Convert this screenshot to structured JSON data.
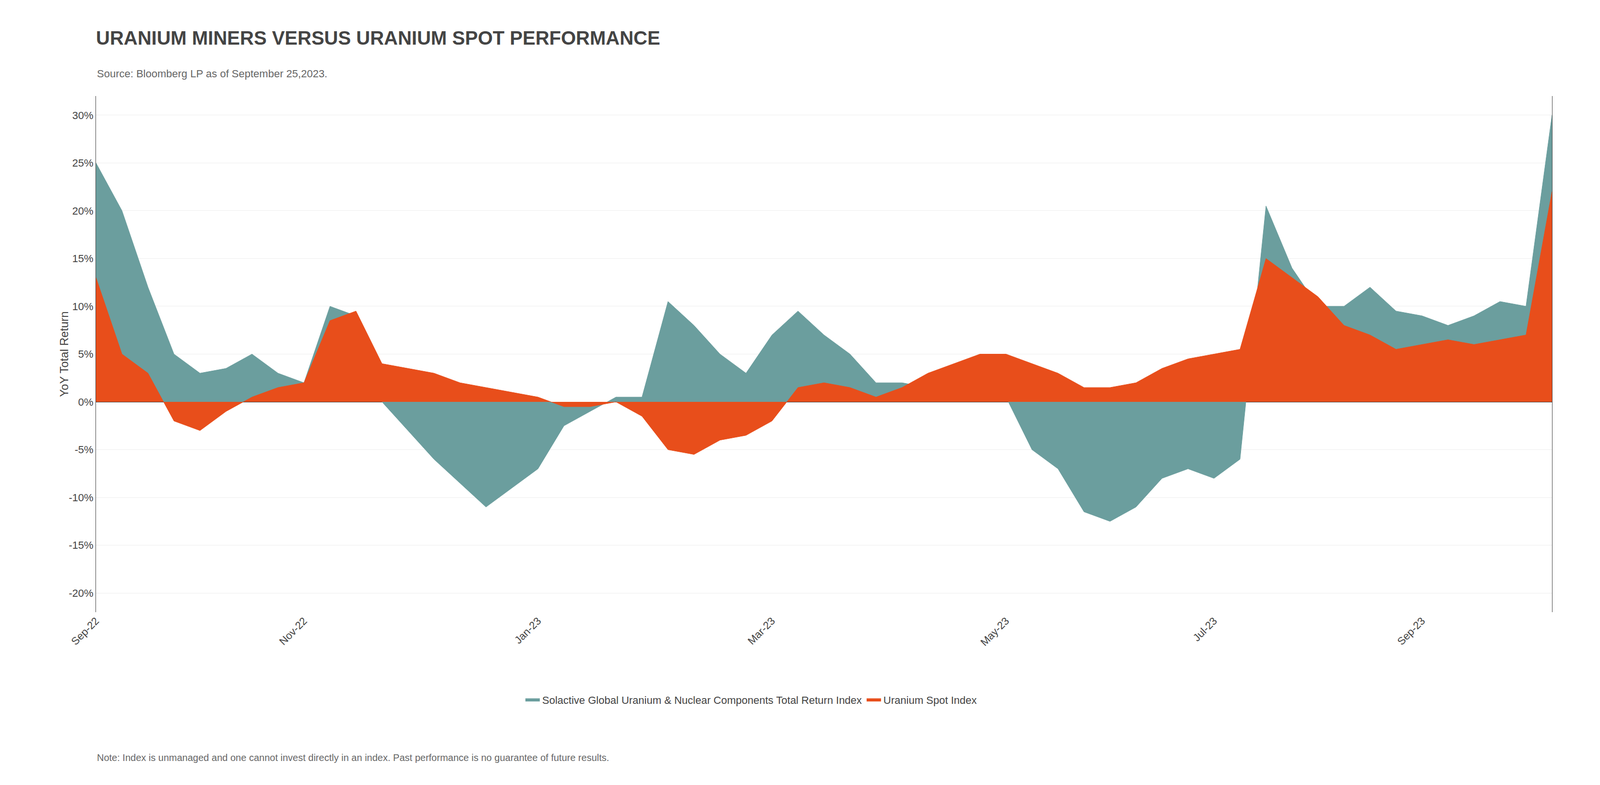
{
  "chart_data": {
    "type": "area",
    "title": "URANIUM MINERS VERSUS URANIUM SPOT PERFORMANCE",
    "subtitle": "Source: Bloomberg LP as of September 25,2023.",
    "annotations": [
      "Note: Index is unmanaged and one cannot invest directly in an index. Past performance is no guarantee of future results."
    ],
    "y_label": "YoY Total Return",
    "categories": [
      "Sep-22",
      null,
      null,
      null,
      null,
      null,
      null,
      null,
      "Nov-22",
      null,
      null,
      null,
      null,
      null,
      null,
      null,
      null,
      "Jan-23",
      null,
      null,
      null,
      null,
      null,
      null,
      null,
      null,
      "Mar-23",
      null,
      null,
      null,
      null,
      null,
      null,
      null,
      null,
      "May-23",
      null,
      null,
      null,
      null,
      null,
      null,
      null,
      "Jul-23",
      null,
      null,
      null,
      null,
      null,
      null,
      null,
      "Sep-23",
      null,
      null,
      null,
      null,
      null
    ],
    "series": [
      {
        "name": "Solactive Global Uranium & Nuclear Components Total Return Index",
        "color": "#6b9e9e",
        "values": [
          25.0,
          20.0,
          12.0,
          5.0,
          3.0,
          3.5,
          5.0,
          3.0,
          2.0,
          10.0,
          9.0,
          0.0,
          -3.0,
          -6.0,
          -8.5,
          -11.0,
          -9.0,
          -7.0,
          -2.5,
          -1.0,
          0.5,
          0.5,
          10.5,
          8.0,
          5.0,
          3.0,
          7.0,
          9.5,
          7.0,
          5.0,
          2.0,
          2.0,
          1.5,
          1.0,
          1.0,
          0.5,
          -5.0,
          -7.0,
          -11.5,
          -12.5,
          -11.0,
          -8.0,
          -7.0,
          -8.0,
          -6.0,
          20.5,
          14.0,
          10.0,
          10.0,
          12.0,
          9.5,
          9.0,
          8.0,
          9.0,
          10.5,
          10.0,
          30.0
        ]
      },
      {
        "name": "Uranium Spot Index",
        "color": "#e84e1b",
        "values": [
          13.0,
          5.0,
          3.0,
          -2.0,
          -3.0,
          -1.0,
          0.5,
          1.5,
          2.0,
          8.5,
          9.5,
          4.0,
          3.5,
          3.0,
          2.0,
          1.5,
          1.0,
          0.5,
          -0.5,
          -0.5,
          0.0,
          -1.5,
          -5.0,
          -5.5,
          -4.0,
          -3.5,
          -2.0,
          1.5,
          2.0,
          1.5,
          0.5,
          1.5,
          3.0,
          4.0,
          5.0,
          5.0,
          4.0,
          3.0,
          1.5,
          1.5,
          2.0,
          3.5,
          4.5,
          5.0,
          5.5,
          15.0,
          13.0,
          11.0,
          8.0,
          7.0,
          5.5,
          6.0,
          6.5,
          6.0,
          6.5,
          7.0,
          22.0
        ]
      }
    ],
    "ylim": [
      -22,
      32
    ],
    "yticks": [
      {
        "value": -20,
        "label": "-20%"
      },
      {
        "value": -15,
        "label": "-15%"
      },
      {
        "value": -10,
        "label": "-10%"
      },
      {
        "value": -5,
        "label": "-5%"
      },
      {
        "value": 0,
        "label": "0%"
      },
      {
        "value": 5,
        "label": "5%"
      },
      {
        "value": 10,
        "label": "10%"
      },
      {
        "value": 15,
        "label": "15%"
      },
      {
        "value": 20,
        "label": "20%"
      },
      {
        "value": 25,
        "label": "25%"
      },
      {
        "value": 30,
        "label": "30%"
      }
    ],
    "grid": true,
    "legend": "bottom"
  }
}
